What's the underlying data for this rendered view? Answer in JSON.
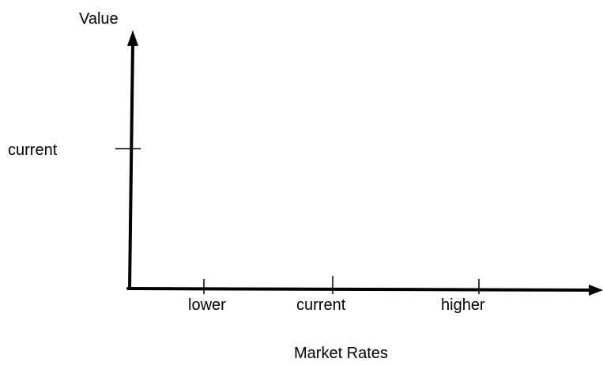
{
  "diagram": {
    "y_axis_label": "Value",
    "x_axis_label": "Market Rates",
    "y_ticks": [
      "current"
    ],
    "x_ticks": [
      "lower",
      "current",
      "higher"
    ],
    "colors": {
      "axis": "#000000",
      "text": "#000000",
      "background": "#ffffff"
    }
  }
}
